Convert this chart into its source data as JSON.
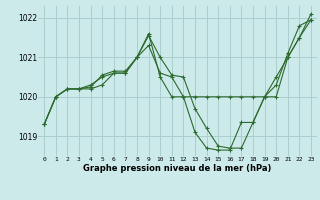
{
  "xlabel": "Graphe pression niveau de la mer (hPa)",
  "background_color": "#cceaea",
  "grid_color": "#aacfcf",
  "line_color": "#2d6a2d",
  "marker_color": "#2d6a2d",
  "ylim": [
    1018.5,
    1022.3
  ],
  "yticks": [
    1019,
    1020,
    1021,
    1022
  ],
  "xticks": [
    0,
    1,
    2,
    3,
    4,
    5,
    6,
    7,
    8,
    9,
    10,
    11,
    12,
    13,
    14,
    15,
    16,
    17,
    18,
    19,
    20,
    21,
    22,
    23
  ],
  "series": [
    [
      1019.3,
      1020.0,
      1020.2,
      1020.2,
      1020.2,
      1020.3,
      1020.6,
      1020.6,
      1021.0,
      1021.3,
      1020.6,
      1020.5,
      1020.0,
      1020.0,
      1020.0,
      1020.0,
      1020.0,
      1020.0,
      1020.0,
      1020.0,
      1020.0,
      1021.0,
      1021.5,
      1022.1
    ],
    [
      1019.3,
      1020.0,
      1020.2,
      1020.2,
      1020.25,
      1020.55,
      1020.65,
      1020.65,
      1021.0,
      1021.55,
      1021.0,
      1020.55,
      1020.5,
      1019.7,
      1019.2,
      1018.75,
      1018.7,
      1018.7,
      1019.35,
      1020.0,
      1020.3,
      1021.1,
      1021.8,
      1021.95
    ],
    [
      1019.3,
      1020.0,
      1020.2,
      1020.2,
      1020.3,
      1020.5,
      1020.6,
      1020.6,
      1021.0,
      1021.6,
      1020.5,
      1020.0,
      1020.0,
      1019.1,
      1018.7,
      1018.65,
      1018.65,
      1019.35,
      1019.35,
      1020.0,
      1020.5,
      1021.0,
      1021.5,
      1021.95
    ]
  ]
}
